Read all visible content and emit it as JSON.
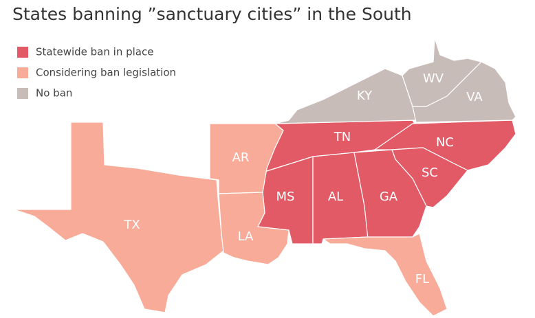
{
  "title": "States banning ”sanctuary cities” in the South",
  "legend": [
    {
      "label": "Statewide ban in place",
      "color": "#e15a66",
      "states": [
        "TN",
        "NC",
        "SC",
        "MS",
        "AL",
        "GA"
      ]
    },
    {
      "label": "Considering ban legislation",
      "color": "#f7ab98",
      "states": [
        "TX",
        "AR",
        "LA",
        "FL"
      ]
    },
    {
      "label": "No ban",
      "color": "#c7bcb8",
      "states": [
        "KY",
        "WV",
        "VA"
      ]
    }
  ]
}
